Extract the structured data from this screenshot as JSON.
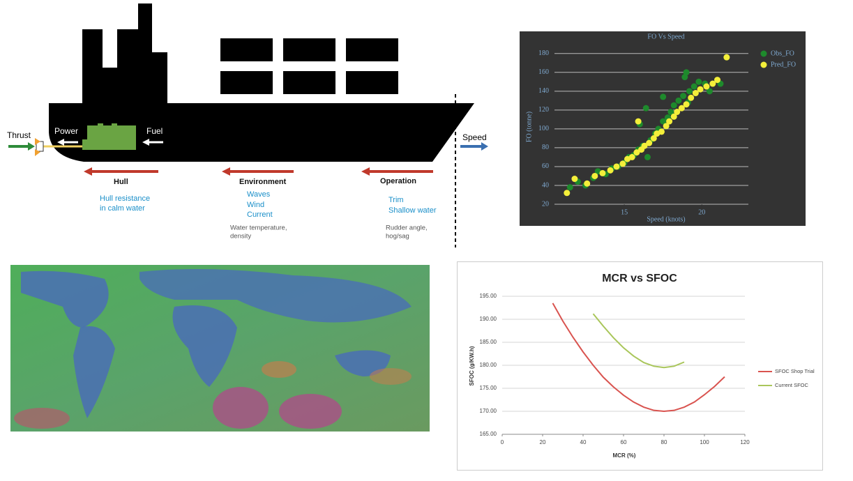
{
  "diagram": {
    "ship": {
      "thrust": "Thrust",
      "power": "Power",
      "fuel": "Fuel",
      "speed": "Speed"
    },
    "factors": [
      {
        "title": "Hull",
        "primary": [
          "Hull  resistance",
          "in calm water"
        ]
      },
      {
        "title": "Environment",
        "primary": [
          "Waves",
          "Wind",
          "Current"
        ],
        "secondary": [
          "Water  temperature,",
          "density"
        ]
      },
      {
        "title": "Operation",
        "primary": [
          "Trim",
          "Shallow water"
        ],
        "secondary": [
          "Rudder angle,",
          "hog/sag"
        ]
      }
    ]
  },
  "chart_data": [
    {
      "type": "scatter",
      "title": "FO Vs Speed",
      "x_label": "Speed (knots)",
      "y_label": "FO (tonne)",
      "xlim": [
        10.5,
        23
      ],
      "xticks": [
        15,
        20
      ],
      "ylim": [
        20,
        185
      ],
      "yticks": [
        20,
        40,
        60,
        80,
        100,
        120,
        140,
        160,
        180
      ],
      "grid": true,
      "legend": "upper right",
      "series": [
        {
          "name": "Obs_FO",
          "color": "#1e8a2c",
          "x": [
            11.5,
            12,
            12.5,
            13,
            13.3,
            13.8,
            14.2,
            14.6,
            15,
            15.3,
            15.6,
            15.9,
            16.2,
            16.4,
            16.7,
            17,
            17.2,
            17.5,
            17.8,
            18,
            18.2,
            18.5,
            18.8,
            19,
            19.2,
            19.5,
            19.8,
            20.2,
            20.5,
            21.2,
            16,
            17.5,
            18.9,
            19.1,
            16.5
          ],
          "values": [
            38,
            44,
            40,
            48,
            55,
            52,
            58,
            60,
            64,
            70,
            72,
            78,
            82,
            122,
            88,
            95,
            100,
            108,
            112,
            118,
            125,
            130,
            135,
            160,
            140,
            145,
            150,
            148,
            140,
            148,
            105,
            134,
            155,
            128,
            70
          ]
        },
        {
          "name": "Pred_FO",
          "color": "#f4ef3a",
          "x": [
            11.3,
            11.8,
            12.6,
            13.1,
            13.6,
            14.1,
            14.5,
            14.9,
            15.2,
            15.5,
            15.8,
            16.1,
            16.3,
            16.6,
            16.9,
            17.1,
            17.4,
            17.7,
            17.9,
            18.2,
            18.4,
            18.7,
            19,
            19.3,
            19.6,
            19.9,
            20.3,
            20.7,
            21,
            21.6,
            15.9
          ],
          "values": [
            32,
            47,
            42,
            50,
            53,
            56,
            60,
            63,
            68,
            70,
            75,
            78,
            82,
            85,
            90,
            95,
            97,
            103,
            108,
            113,
            118,
            122,
            126,
            133,
            138,
            142,
            145,
            148,
            152,
            176,
            108
          ]
        }
      ]
    },
    {
      "type": "line",
      "title": "MCR vs SFOC",
      "x_label": "MCR (%)",
      "y_label": "SFOC (g/KW.h)",
      "xlim": [
        0,
        120
      ],
      "xticks": [
        0,
        20,
        40,
        60,
        80,
        100,
        120
      ],
      "ylim": [
        165,
        195
      ],
      "yticks": [
        {
          "value": 165,
          "label": "165.00"
        },
        {
          "value": 170,
          "label": "170.00"
        },
        {
          "value": 175,
          "label": "175.00"
        },
        {
          "value": 180,
          "label": "180.00"
        },
        {
          "value": 185,
          "label": "185.00"
        },
        {
          "value": 190,
          "label": "190.00"
        },
        {
          "value": 195,
          "label": "195.00"
        }
      ],
      "grid": true,
      "legend": "right",
      "series": [
        {
          "name": "SFOC Shop Trial",
          "color": "#d9534f",
          "x": [
            25,
            30,
            35,
            40,
            45,
            50,
            55,
            60,
            65,
            70,
            75,
            80,
            85,
            90,
            95,
            100,
            105,
            110
          ],
          "values": [
            193.5,
            189.6,
            186.1,
            182.9,
            180.0,
            177.4,
            175.3,
            173.5,
            172.0,
            170.9,
            170.2,
            170.0,
            170.2,
            170.9,
            172.0,
            173.6,
            175.4,
            177.5
          ]
        },
        {
          "name": "Current SFOC",
          "color": "#a9c65a",
          "x": [
            45,
            50,
            55,
            60,
            65,
            70,
            75,
            80,
            85,
            90
          ],
          "values": [
            191.2,
            188.5,
            186.0,
            183.8,
            182.0,
            180.6,
            179.8,
            179.5,
            179.8,
            180.7
          ]
        }
      ]
    }
  ]
}
